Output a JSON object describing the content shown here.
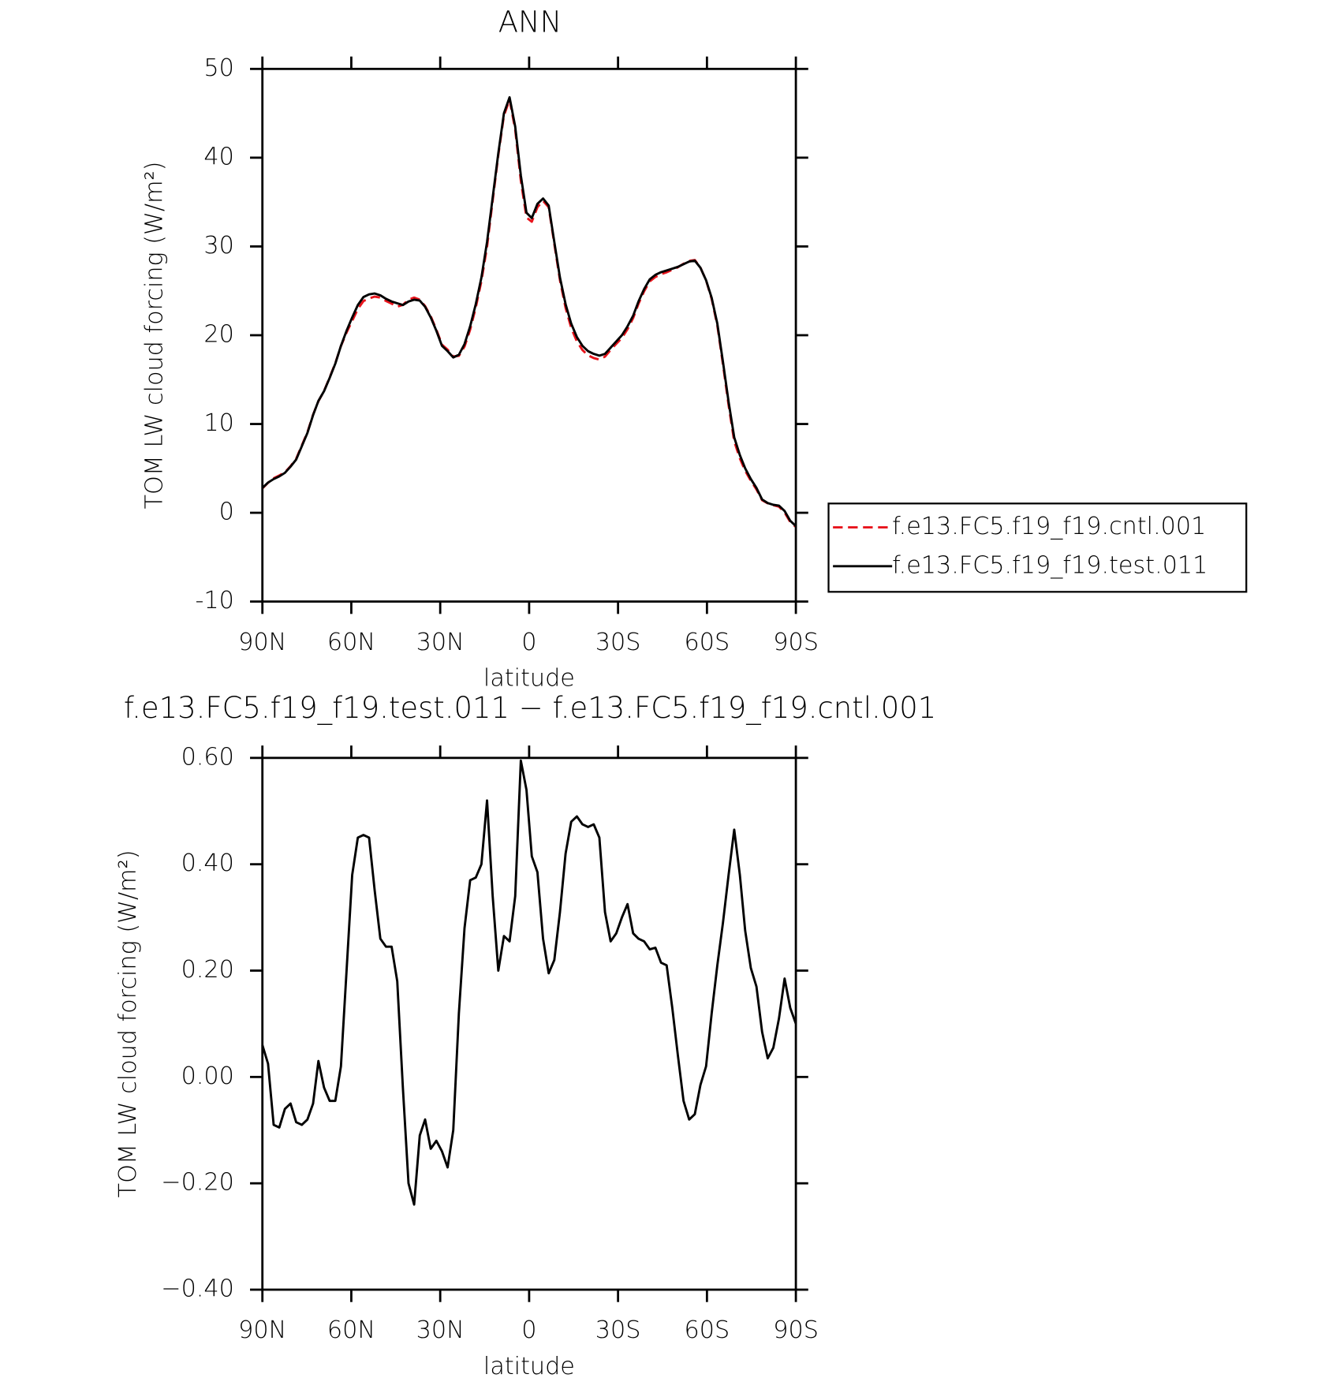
{
  "chart_data": [
    {
      "type": "line",
      "title": "ANN",
      "xlabel": "latitude",
      "ylabel": "TOM LW cloud forcing (W/m²)",
      "x": [
        90,
        88.1,
        86.2,
        84.3,
        82.4,
        80.5,
        78.6,
        76.7,
        74.8,
        72.9,
        71.1,
        69.2,
        67.3,
        65.4,
        63.5,
        61.6,
        59.7,
        57.8,
        55.9,
        54.0,
        52.1,
        50.2,
        48.3,
        46.4,
        44.5,
        42.6,
        40.7,
        38.8,
        36.9,
        35.1,
        33.2,
        31.3,
        29.4,
        27.5,
        25.6,
        23.7,
        21.8,
        19.9,
        18.0,
        16.1,
        14.2,
        12.3,
        10.4,
        8.5,
        6.6,
        4.7,
        2.8,
        0.9,
        -0.9,
        -2.8,
        -4.7,
        -6.6,
        -8.5,
        -10.4,
        -12.3,
        -14.2,
        -16.1,
        -18.0,
        -19.9,
        -21.8,
        -23.7,
        -25.6,
        -27.5,
        -29.4,
        -31.3,
        -33.2,
        -35.1,
        -36.9,
        -38.8,
        -40.7,
        -42.6,
        -44.5,
        -46.4,
        -48.3,
        -50.2,
        -52.1,
        -54.0,
        -55.9,
        -57.8,
        -59.7,
        -61.6,
        -63.5,
        -65.4,
        -67.3,
        -69.2,
        -71.1,
        -72.9,
        -74.8,
        -76.7,
        -78.6,
        -80.5,
        -82.4,
        -84.3,
        -86.2,
        -88.1,
        -90
      ],
      "series": [
        {
          "name": "f.e13.FC5.f19_f19.cntl.001",
          "color": "#e8141c",
          "style": "dashed",
          "values": [
            2.74,
            3.38,
            3.89,
            4.2,
            4.56,
            5.25,
            6.09,
            7.59,
            9.08,
            11.05,
            12.57,
            13.72,
            15.25,
            16.85,
            18.78,
            20.3,
            21.62,
            22.95,
            23.85,
            24.15,
            24.35,
            24.24,
            23.86,
            23.56,
            23.22,
            23.42,
            24.0,
            24.24,
            24.01,
            23.28,
            22.14,
            20.62,
            18.94,
            18.37,
            17.6,
            17.68,
            18.72,
            20.63,
            23.13,
            26.1,
            29.98,
            35.16,
            40.3,
            44.74,
            46.55,
            43.16,
            37.41,
            33.26,
            32.79,
            34.42,
            35.14,
            34.41,
            30.28,
            26.19,
            23.08,
            20.82,
            19.31,
            18.33,
            17.73,
            17.43,
            17.25,
            17.59,
            18.35,
            19.03,
            19.7,
            20.68,
            21.93,
            23.54,
            24.95,
            26.06,
            26.56,
            26.89,
            27.09,
            27.37,
            27.66,
            28.05,
            28.38,
            28.47,
            27.62,
            26.18,
            24.08,
            21.09,
            16.71,
            12.12,
            8.04,
            6.12,
            4.73,
            3.6,
            2.63,
            1.42,
            1.07,
            0.85,
            0.69,
            0.02,
            -1.03,
            -1.6
          ]
        },
        {
          "name": "f.e13.FC5.f19_f19.test.011",
          "color": "#000000",
          "style": "solid",
          "values": [
            2.8,
            3.4,
            3.8,
            4.1,
            4.5,
            5.2,
            6.0,
            7.5,
            9.0,
            11.0,
            12.6,
            13.7,
            15.2,
            16.8,
            18.8,
            20.5,
            22.0,
            23.4,
            24.3,
            24.6,
            24.7,
            24.5,
            24.1,
            23.8,
            23.6,
            23.4,
            23.8,
            24.0,
            23.9,
            23.2,
            22.0,
            20.5,
            18.8,
            18.2,
            17.5,
            17.8,
            19.0,
            21.0,
            23.5,
            26.5,
            30.5,
            35.5,
            40.5,
            45.0,
            46.8,
            43.5,
            38.0,
            33.8,
            33.2,
            34.8,
            35.4,
            34.6,
            30.5,
            26.5,
            23.5,
            21.3,
            19.8,
            18.8,
            18.2,
            17.9,
            17.7,
            17.9,
            18.6,
            19.3,
            20.0,
            21.0,
            22.2,
            23.8,
            25.2,
            26.3,
            26.8,
            27.1,
            27.3,
            27.5,
            27.7,
            28.0,
            28.3,
            28.4,
            27.6,
            26.2,
            24.2,
            21.3,
            17.0,
            12.5,
            8.5,
            6.5,
            5.0,
            3.8,
            2.8,
            1.5,
            1.1,
            0.9,
            0.8,
            0.2,
            -0.9,
            -1.5
          ]
        }
      ],
      "xlim": [
        90,
        -90
      ],
      "xticks": [
        {
          "value": 90,
          "label": "90N"
        },
        {
          "value": 60,
          "label": "60N"
        },
        {
          "value": 30,
          "label": "30N"
        },
        0,
        {
          "value": -30,
          "label": "30S"
        },
        {
          "value": -60,
          "label": "60S"
        },
        {
          "value": -90,
          "label": "90S"
        }
      ],
      "ylim": [
        -10,
        50
      ],
      "yticks": [
        -10,
        0,
        10,
        20,
        30,
        40,
        50
      ],
      "legend": "right",
      "grid": false
    },
    {
      "type": "line",
      "title": "f.e13.FC5.f19_f19.test.011 − f.e13.FC5.f19_f19.cntl.001",
      "xlabel": "latitude",
      "ylabel": "TOM LW cloud forcing (W/m²)",
      "x": [
        90,
        88.1,
        86.2,
        84.3,
        82.4,
        80.5,
        78.6,
        76.7,
        74.8,
        72.9,
        71.1,
        69.2,
        67.3,
        65.4,
        63.5,
        61.6,
        59.7,
        57.8,
        55.9,
        54.0,
        52.1,
        50.2,
        48.3,
        46.4,
        44.5,
        42.6,
        40.7,
        38.8,
        36.9,
        35.1,
        33.2,
        31.3,
        29.4,
        27.5,
        25.6,
        23.7,
        21.8,
        19.9,
        18.0,
        16.1,
        14.2,
        12.3,
        10.4,
        8.5,
        6.6,
        4.7,
        2.8,
        0.9,
        -0.9,
        -2.8,
        -4.7,
        -6.6,
        -8.5,
        -10.4,
        -12.3,
        -14.2,
        -16.1,
        -18.0,
        -19.9,
        -21.8,
        -23.7,
        -25.6,
        -27.5,
        -29.4,
        -31.3,
        -33.2,
        -35.1,
        -36.9,
        -38.8,
        -40.7,
        -42.6,
        -44.5,
        -46.4,
        -48.3,
        -50.2,
        -52.1,
        -54.0,
        -55.9,
        -57.8,
        -59.7,
        -61.6,
        -63.5,
        -65.4,
        -67.3,
        -69.2,
        -71.1,
        -72.9,
        -74.8,
        -76.7,
        -78.6,
        -80.5,
        -82.4,
        -84.3,
        -86.2,
        -88.1,
        -90
      ],
      "color": "#000000",
      "values": [
        0.06,
        0.025,
        -0.09,
        -0.095,
        -0.06,
        -0.05,
        -0.085,
        -0.09,
        -0.08,
        -0.05,
        0.03,
        -0.02,
        -0.045,
        -0.045,
        0.02,
        0.2,
        0.38,
        0.45,
        0.455,
        0.45,
        0.35,
        0.26,
        0.245,
        0.245,
        0.18,
        -0.02,
        -0.2,
        -0.24,
        -0.11,
        -0.08,
        -0.135,
        -0.12,
        -0.14,
        -0.17,
        -0.1,
        0.12,
        0.28,
        0.37,
        0.375,
        0.4,
        0.52,
        0.34,
        0.2,
        0.265,
        0.255,
        0.34,
        0.595,
        0.54,
        0.415,
        0.385,
        0.26,
        0.195,
        0.22,
        0.31,
        0.42,
        0.48,
        0.49,
        0.475,
        0.47,
        0.475,
        0.45,
        0.31,
        0.255,
        0.27,
        0.3,
        0.325,
        0.27,
        0.26,
        0.255,
        0.24,
        0.243,
        0.215,
        0.21,
        0.13,
        0.04,
        -0.045,
        -0.08,
        -0.07,
        -0.015,
        0.02,
        0.12,
        0.21,
        0.29,
        0.38,
        0.465,
        0.38,
        0.275,
        0.205,
        0.17,
        0.085,
        0.035,
        0.055,
        0.11,
        0.185,
        0.13,
        0.1
      ],
      "xlim": [
        90,
        -90
      ],
      "xticks": [
        {
          "value": 90,
          "label": "90N"
        },
        {
          "value": 60,
          "label": "60N"
        },
        {
          "value": 30,
          "label": "30N"
        },
        0,
        {
          "value": -30,
          "label": "30S"
        },
        {
          "value": -60,
          "label": "60S"
        },
        {
          "value": -90,
          "label": "90S"
        }
      ],
      "ylim": [
        -0.4,
        0.6
      ],
      "yticks": [
        {
          "value": -0.4,
          "label": "−0.40"
        },
        {
          "value": -0.2,
          "label": "−0.20"
        },
        {
          "value": 0,
          "label": "0.00"
        },
        {
          "value": 0.2,
          "label": "0.20"
        },
        {
          "value": 0.4,
          "label": "0.40"
        },
        {
          "value": 0.6,
          "label": "0.60"
        }
      ],
      "grid": false
    }
  ]
}
